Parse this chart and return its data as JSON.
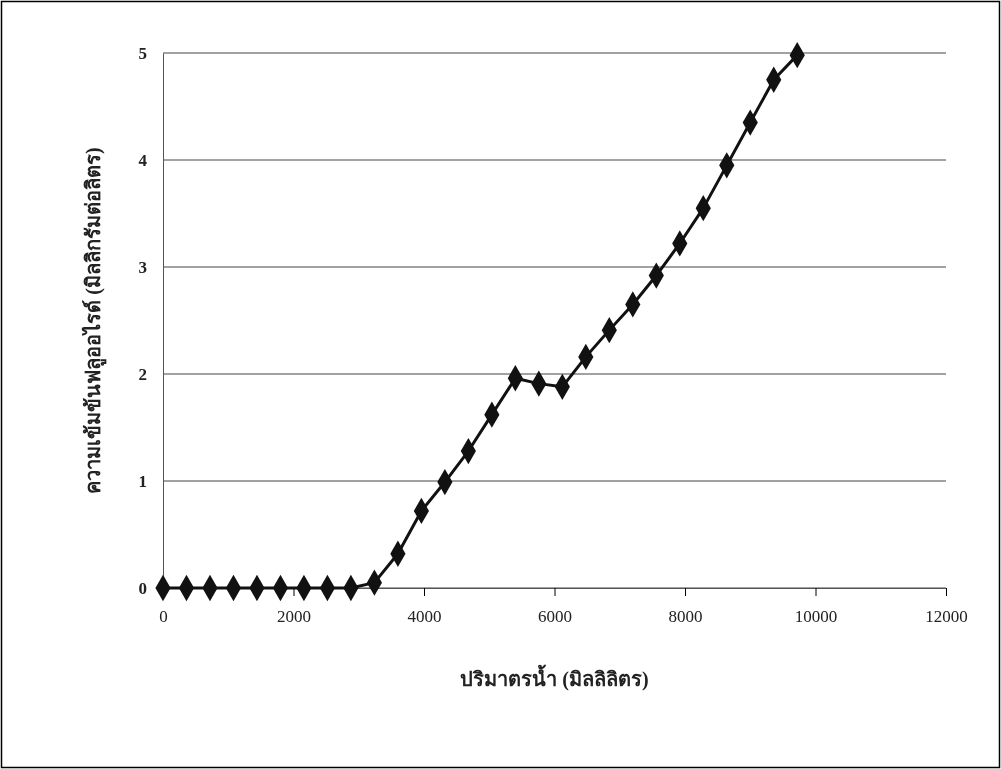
{
  "chart_data": {
    "type": "line",
    "xlabel": "ปริมาตรน้ำ (มิลลิลิตร)",
    "ylabel": "ความเข้มข้นฟลูออไรด์ (มิลลิกรัมต่อลิตร)",
    "x": [
      0,
      360,
      720,
      1080,
      1440,
      1800,
      2160,
      2520,
      2880,
      3240,
      3600,
      3960,
      4320,
      4680,
      5040,
      5400,
      5760,
      6120,
      6480,
      6840,
      7200,
      7560,
      7920,
      8280,
      8640,
      9000,
      9360,
      9720
    ],
    "series": [
      {
        "color": "#111111",
        "values": [
          0,
          0,
          0,
          0,
          0,
          0,
          0,
          0,
          0,
          0.05,
          0.32,
          0.72,
          0.99,
          1.28,
          1.62,
          1.96,
          1.91,
          1.88,
          2.16,
          2.41,
          2.65,
          2.92,
          3.22,
          3.55,
          3.95,
          4.35,
          4.75,
          4.98
        ]
      }
    ],
    "xlim": [
      0,
      12000
    ],
    "xticks": [
      0,
      2000,
      4000,
      6000,
      8000,
      10000,
      12000
    ],
    "ylim": [
      0,
      5
    ],
    "yticks": [
      0,
      1,
      2,
      3,
      4,
      5
    ],
    "grid": "y",
    "marker": "diamond",
    "line_style": "solid"
  }
}
